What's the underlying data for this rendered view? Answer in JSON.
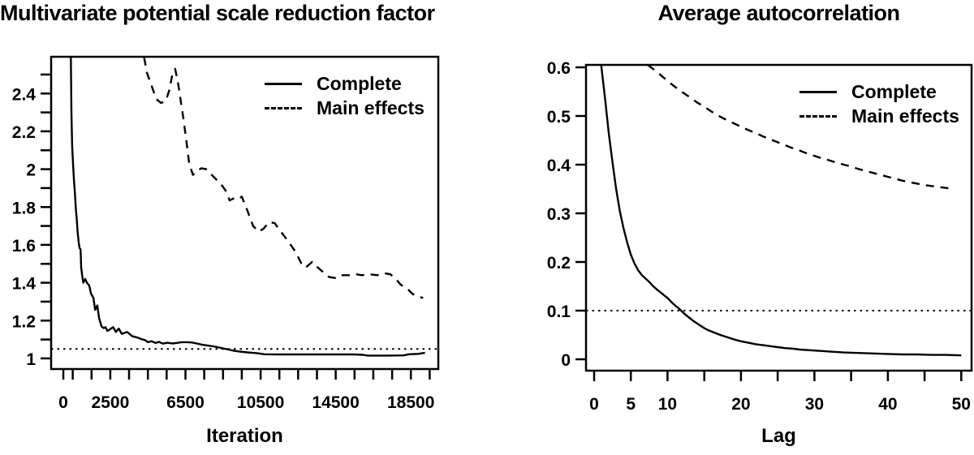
{
  "colors": {
    "ink": "#000000",
    "background": "#ffffff"
  },
  "chart_data": [
    {
      "type": "line",
      "title": "Multivariate potential scale reduction factor",
      "xlabel": "Iteration",
      "ylabel": "",
      "xlim": [
        -650,
        19960
      ],
      "ylim": [
        0.944,
        2.594
      ],
      "grid": "off",
      "x_minor_ticks": [
        0,
        500,
        1500,
        2500,
        3500,
        4500,
        5500,
        6500,
        7500,
        8500,
        9500,
        10500,
        11500,
        12500,
        13500,
        14500,
        15500,
        16500,
        17500,
        18500,
        19500
      ],
      "x_tick_labels": [
        {
          "value": 0,
          "label": "0"
        },
        {
          "value": 2500,
          "label": "2500"
        },
        {
          "value": 6500,
          "label": "6500"
        },
        {
          "value": 10500,
          "label": "10500"
        },
        {
          "value": 14500,
          "label": "14500"
        },
        {
          "value": 18500,
          "label": "18500"
        }
      ],
      "y_minor_ticks": [
        1,
        1.1,
        1.2,
        1.3,
        1.4,
        1.5,
        1.6,
        1.7,
        1.8,
        1.9,
        2,
        2.1,
        2.2,
        2.3,
        2.4,
        2.5
      ],
      "y_tick_labels": [
        {
          "value": 1,
          "label": "1"
        },
        {
          "value": 1.2,
          "label": "1.2"
        },
        {
          "value": 1.4,
          "label": "1.4"
        },
        {
          "value": 1.6,
          "label": "1.6"
        },
        {
          "value": 1.8,
          "label": "1.8"
        },
        {
          "value": 2,
          "label": "2"
        },
        {
          "value": 2.2,
          "label": "2.2"
        },
        {
          "value": 2.4,
          "label": "2.4"
        }
      ],
      "reference_line": {
        "y": 1.05,
        "style": "dotted"
      },
      "legend_position": "topright",
      "series": [
        {
          "name": "Complete",
          "line": "solid",
          "points": [
            [
              400,
              2.59
            ],
            [
              430,
              2.3
            ],
            [
              470,
              2.12
            ],
            [
              520,
              2.02
            ],
            [
              560,
              1.95
            ],
            [
              610,
              1.88
            ],
            [
              660,
              1.8
            ],
            [
              710,
              1.74
            ],
            [
              760,
              1.67
            ],
            [
              810,
              1.62
            ],
            [
              860,
              1.585
            ],
            [
              920,
              1.575
            ],
            [
              950,
              1.48
            ],
            [
              1000,
              1.44
            ],
            [
              1060,
              1.4
            ],
            [
              1170,
              1.42
            ],
            [
              1250,
              1.4
            ],
            [
              1380,
              1.385
            ],
            [
              1470,
              1.343
            ],
            [
              1600,
              1.32
            ],
            [
              1690,
              1.257
            ],
            [
              1810,
              1.28
            ],
            [
              1900,
              1.215
            ],
            [
              2030,
              1.17
            ],
            [
              2150,
              1.16
            ],
            [
              2250,
              1.165
            ],
            [
              2350,
              1.145
            ],
            [
              2500,
              1.155
            ],
            [
              2650,
              1.165
            ],
            [
              2800,
              1.14
            ],
            [
              2950,
              1.158
            ],
            [
              3110,
              1.13
            ],
            [
              3400,
              1.14
            ],
            [
              3670,
              1.117
            ],
            [
              3970,
              1.11
            ],
            [
              4150,
              1.102
            ],
            [
              4350,
              1.097
            ],
            [
              4500,
              1.086
            ],
            [
              4700,
              1.091
            ],
            [
              4900,
              1.082
            ],
            [
              5100,
              1.087
            ],
            [
              5300,
              1.078
            ],
            [
              5550,
              1.083
            ],
            [
              5800,
              1.079
            ],
            [
              6050,
              1.082
            ],
            [
              6300,
              1.086
            ],
            [
              6600,
              1.086
            ],
            [
              6850,
              1.084
            ],
            [
              7100,
              1.079
            ],
            [
              7400,
              1.072
            ],
            [
              7700,
              1.068
            ],
            [
              8100,
              1.062
            ],
            [
              8500,
              1.053
            ],
            [
              8800,
              1.047
            ],
            [
              9100,
              1.04
            ],
            [
              9400,
              1.036
            ],
            [
              9800,
              1.032
            ],
            [
              10300,
              1.028
            ],
            [
              10700,
              1.022
            ],
            [
              11500,
              1.021
            ],
            [
              12800,
              1.021
            ],
            [
              14200,
              1.021
            ],
            [
              15500,
              1.021
            ],
            [
              15950,
              1.019
            ],
            [
              16200,
              1.015
            ],
            [
              17300,
              1.015
            ],
            [
              18100,
              1.016
            ],
            [
              18400,
              1.022
            ],
            [
              18900,
              1.024
            ],
            [
              19250,
              1.03
            ]
          ]
        },
        {
          "name": "Main effects",
          "line": "dashed",
          "points": [
            [
              4300,
              2.59
            ],
            [
              4450,
              2.51
            ],
            [
              4700,
              2.44
            ],
            [
              4950,
              2.37
            ],
            [
              5200,
              2.35
            ],
            [
              5450,
              2.36
            ],
            [
              5650,
              2.42
            ],
            [
              5800,
              2.5
            ],
            [
              5950,
              2.53
            ],
            [
              6100,
              2.46
            ],
            [
              6250,
              2.36
            ],
            [
              6400,
              2.26
            ],
            [
              6550,
              2.15
            ],
            [
              6700,
              2.03
            ],
            [
              6900,
              1.97
            ],
            [
              7100,
              1.99
            ],
            [
              7350,
              2.005
            ],
            [
              7600,
              2.0
            ],
            [
              7850,
              1.975
            ],
            [
              8100,
              1.95
            ],
            [
              8400,
              1.92
            ],
            [
              8650,
              1.885
            ],
            [
              8850,
              1.835
            ],
            [
              9050,
              1.845
            ],
            [
              9300,
              1.84
            ],
            [
              9500,
              1.855
            ],
            [
              9800,
              1.78
            ],
            [
              10100,
              1.7
            ],
            [
              10400,
              1.67
            ],
            [
              10650,
              1.685
            ],
            [
              10950,
              1.72
            ],
            [
              11250,
              1.715
            ],
            [
              11500,
              1.68
            ],
            [
              11850,
              1.635
            ],
            [
              12100,
              1.6
            ],
            [
              12350,
              1.565
            ],
            [
              12700,
              1.495
            ],
            [
              12900,
              1.48
            ],
            [
              13250,
              1.51
            ],
            [
              13550,
              1.48
            ],
            [
              13900,
              1.45
            ],
            [
              14150,
              1.43
            ],
            [
              14500,
              1.425
            ],
            [
              14850,
              1.44
            ],
            [
              15200,
              1.44
            ],
            [
              15550,
              1.445
            ],
            [
              15900,
              1.44
            ],
            [
              16300,
              1.445
            ],
            [
              16700,
              1.44
            ],
            [
              17050,
              1.45
            ],
            [
              17400,
              1.445
            ],
            [
              17700,
              1.42
            ],
            [
              17950,
              1.39
            ],
            [
              18300,
              1.37
            ],
            [
              18600,
              1.34
            ],
            [
              18950,
              1.325
            ],
            [
              19150,
              1.32
            ]
          ]
        }
      ]
    },
    {
      "type": "line",
      "title": "Average autocorrelation",
      "xlabel": "Lag",
      "ylabel": "",
      "xlim": [
        -1.1,
        51.4
      ],
      "ylim": [
        -0.0233,
        0.605
      ],
      "grid": "off",
      "x_minor_ticks": [
        0,
        5,
        10,
        15,
        20,
        25,
        30,
        35,
        40,
        45,
        50
      ],
      "x_tick_labels": [
        {
          "value": 0,
          "label": "0"
        },
        {
          "value": 5,
          "label": "5"
        },
        {
          "value": 10,
          "label": "10"
        },
        {
          "value": 20,
          "label": "20"
        },
        {
          "value": 30,
          "label": "30"
        },
        {
          "value": 40,
          "label": "40"
        },
        {
          "value": 50,
          "label": "50"
        }
      ],
      "y_minor_ticks": [
        0,
        0.1,
        0.2,
        0.3,
        0.4,
        0.5,
        0.6
      ],
      "y_tick_labels": [
        {
          "value": 0,
          "label": "0"
        },
        {
          "value": 0.1,
          "label": "0.1"
        },
        {
          "value": 0.2,
          "label": "0.2"
        },
        {
          "value": 0.3,
          "label": "0.3"
        },
        {
          "value": 0.4,
          "label": "0.4"
        },
        {
          "value": 0.5,
          "label": "0.5"
        },
        {
          "value": 0.6,
          "label": "0.6"
        }
      ],
      "reference_line": {
        "y": 0.1,
        "style": "dotted"
      },
      "legend_position": "topright",
      "series": [
        {
          "name": "Complete",
          "line": "solid",
          "points": [
            [
              0.99,
              0.605
            ],
            [
              1,
              0.6
            ],
            [
              1.5,
              0.535
            ],
            [
              2,
              0.465
            ],
            [
              2.5,
              0.405
            ],
            [
              3,
              0.35
            ],
            [
              3.5,
              0.305
            ],
            [
              4,
              0.27
            ],
            [
              4.5,
              0.24
            ],
            [
              5,
              0.215
            ],
            [
              5.5,
              0.197
            ],
            [
              6,
              0.183
            ],
            [
              6.5,
              0.173
            ],
            [
              7,
              0.166
            ],
            [
              7.5,
              0.159
            ],
            [
              8,
              0.151
            ],
            [
              8.5,
              0.144
            ],
            [
              9,
              0.138
            ],
            [
              9.5,
              0.132
            ],
            [
              10,
              0.126
            ],
            [
              10.5,
              0.118
            ],
            [
              11,
              0.111
            ],
            [
              11.5,
              0.105
            ],
            [
              12,
              0.098
            ],
            [
              12.5,
              0.091
            ],
            [
              13,
              0.085
            ],
            [
              13.5,
              0.079
            ],
            [
              14,
              0.074
            ],
            [
              14.5,
              0.069
            ],
            [
              15,
              0.064
            ],
            [
              15.5,
              0.06
            ],
            [
              16,
              0.057
            ],
            [
              17,
              0.051
            ],
            [
              18,
              0.046
            ],
            [
              19,
              0.041
            ],
            [
              20,
              0.037
            ],
            [
              21,
              0.034
            ],
            [
              22,
              0.031
            ],
            [
              23,
              0.029
            ],
            [
              24,
              0.027
            ],
            [
              25,
              0.025
            ],
            [
              26,
              0.023
            ],
            [
              27,
              0.022
            ],
            [
              28,
              0.02
            ],
            [
              29,
              0.019
            ],
            [
              30,
              0.018
            ],
            [
              32,
              0.016
            ],
            [
              34,
              0.014
            ],
            [
              36,
              0.013
            ],
            [
              38,
              0.012
            ],
            [
              40,
              0.011
            ],
            [
              42,
              0.01
            ],
            [
              44,
              0.01
            ],
            [
              46,
              0.009
            ],
            [
              48,
              0.009
            ],
            [
              50,
              0.008
            ]
          ]
        },
        {
          "name": "Main effects",
          "line": "dashed",
          "points": [
            [
              7.3,
              0.605
            ],
            [
              8,
              0.597
            ],
            [
              9,
              0.585
            ],
            [
              10,
              0.572
            ],
            [
              11,
              0.56
            ],
            [
              12,
              0.549
            ],
            [
              13,
              0.539
            ],
            [
              14,
              0.528
            ],
            [
              15,
              0.519
            ],
            [
              16,
              0.509
            ],
            [
              17,
              0.5
            ],
            [
              18,
              0.492
            ],
            [
              19,
              0.485
            ],
            [
              20,
              0.478
            ],
            [
              21,
              0.471
            ],
            [
              22,
              0.465
            ],
            [
              23,
              0.458
            ],
            [
              24,
              0.452
            ],
            [
              25,
              0.446
            ],
            [
              26,
              0.44
            ],
            [
              27,
              0.434
            ],
            [
              28,
              0.429
            ],
            [
              29,
              0.423
            ],
            [
              30,
              0.418
            ],
            [
              31,
              0.413
            ],
            [
              32,
              0.409
            ],
            [
              33,
              0.404
            ],
            [
              34,
              0.4
            ],
            [
              35,
              0.396
            ],
            [
              36,
              0.391
            ],
            [
              37,
              0.387
            ],
            [
              38,
              0.383
            ],
            [
              39,
              0.379
            ],
            [
              40,
              0.375
            ],
            [
              41,
              0.371
            ],
            [
              42,
              0.367
            ],
            [
              43,
              0.364
            ],
            [
              44,
              0.361
            ],
            [
              45,
              0.358
            ],
            [
              46,
              0.356
            ],
            [
              47,
              0.354
            ],
            [
              48,
              0.352
            ],
            [
              49,
              0.35
            ]
          ]
        }
      ]
    }
  ]
}
